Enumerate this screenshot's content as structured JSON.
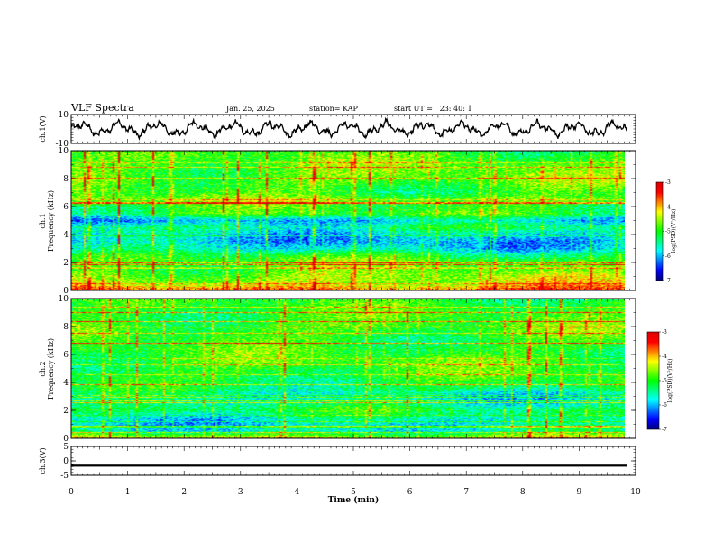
{
  "header": {
    "title": "VLF Spectra",
    "date": "Jan. 25, 2025",
    "station": "station= KAP",
    "start_ut": "start UT =   23: 40: 1"
  },
  "colors": {
    "colormap": [
      "#00007f",
      "#0000ff",
      "#0080ff",
      "#00ffff",
      "#00ff80",
      "#00ff00",
      "#80ff00",
      "#ffff00",
      "#ff8000",
      "#ff0000",
      "#e00000"
    ],
    "trace": "#000000"
  },
  "chart_data": [
    {
      "type": "line",
      "panel": "ch1-waveform",
      "ylabel": "ch.1(V)",
      "ylim": [
        -10,
        10
      ],
      "yticks": [
        {
          "value": 10,
          "label": "10"
        },
        {
          "value": -10,
          "label": "-10"
        }
      ],
      "xlim": [
        0,
        10
      ],
      "description_values": "Waveform oscillating around 0 V with amplitude roughly 3-5 V"
    },
    {
      "type": "heatmap",
      "panel": "ch1-spectrogram",
      "ylabel_line1": "ch.1",
      "ylabel_line2": "Frequency (kHz)",
      "ylim": [
        0,
        10
      ],
      "yticks": [
        {
          "value": 0,
          "label": "0"
        },
        {
          "value": 2,
          "label": "2"
        },
        {
          "value": 4,
          "label": "4"
        },
        {
          "value": 6,
          "label": "6"
        },
        {
          "value": 8,
          "label": "8"
        },
        {
          "value": 10,
          "label": "10"
        }
      ],
      "xlim": [
        0,
        10
      ],
      "zlim": [
        -7,
        -3
      ],
      "colorbar_label": "log(PSD)(V²/Hz)",
      "colorbar_ticks": [
        {
          "value": -3,
          "label": "-3"
        },
        {
          "value": -4,
          "label": "-4"
        },
        {
          "value": -5,
          "label": "-5"
        },
        {
          "value": -6,
          "label": "-6"
        },
        {
          "value": -7,
          "label": "-7"
        }
      ],
      "freq_profile_khz": [
        0,
        0.5,
        1,
        1.5,
        2,
        2.5,
        3,
        3.5,
        4,
        4.5,
        5,
        5.5,
        6,
        6.5,
        7,
        7.5,
        8,
        8.5,
        9,
        9.5,
        10
      ],
      "level_profile": [
        -3.6,
        -4.4,
        -4.6,
        -4.9,
        -4.8,
        -5.2,
        -5.8,
        -6.0,
        -5.8,
        -5.4,
        -6.0,
        -5.0,
        -5.1,
        -4.6,
        -5.0,
        -4.9,
        -4.7,
        -4.8,
        -4.8,
        -4.9,
        -5.0
      ]
    },
    {
      "type": "heatmap",
      "panel": "ch2-spectrogram",
      "ylabel_line1": "ch.2",
      "ylabel_line2": "Frequency (kHz)",
      "ylim": [
        0,
        10
      ],
      "yticks": [
        {
          "value": 0,
          "label": "0"
        },
        {
          "value": 2,
          "label": "2"
        },
        {
          "value": 4,
          "label": "4"
        },
        {
          "value": 6,
          "label": "6"
        },
        {
          "value": 8,
          "label": "8"
        },
        {
          "value": 10,
          "label": "10"
        }
      ],
      "xlim": [
        0,
        10
      ],
      "zlim": [
        -7,
        -3
      ],
      "colorbar_label": "log(PSD)(V²/Hz)",
      "colorbar_ticks": [
        {
          "value": -3,
          "label": "-3"
        },
        {
          "value": -4,
          "label": "-4"
        },
        {
          "value": -5,
          "label": "-5"
        },
        {
          "value": -6,
          "label": "-6"
        },
        {
          "value": -7,
          "label": "-7"
        }
      ],
      "freq_profile_khz": [
        0,
        0.5,
        1,
        1.5,
        2,
        2.5,
        3,
        3.5,
        4,
        4.5,
        5,
        5.5,
        6,
        6.5,
        7,
        7.5,
        8,
        8.5,
        9,
        9.5,
        10
      ],
      "level_profile": [
        -4.2,
        -5.6,
        -5.8,
        -5.6,
        -5.2,
        -5.6,
        -5.7,
        -5.3,
        -5.1,
        -5.0,
        -5.0,
        -4.9,
        -5.0,
        -5.0,
        -5.0,
        -4.9,
        -4.8,
        -5.0,
        -5.0,
        -5.0,
        -5.1
      ]
    },
    {
      "type": "line",
      "panel": "ch3-waveform",
      "ylabel": "ch.3(V)",
      "ylim": [
        -5,
        5
      ],
      "yticks": [
        {
          "value": 5,
          "label": "5"
        },
        {
          "value": 0,
          "label": "0"
        },
        {
          "value": -5,
          "label": "-5"
        }
      ],
      "xlim": [
        0,
        10
      ],
      "trace_level_v": -1.5,
      "trace_band_v": 0.5
    }
  ],
  "x_axis": {
    "xlabel": "Time (min)",
    "xlim": [
      0,
      10
    ],
    "ticks": [
      {
        "value": 0,
        "label": "0"
      },
      {
        "value": 1,
        "label": "1"
      },
      {
        "value": 2,
        "label": "2"
      },
      {
        "value": 3,
        "label": "3"
      },
      {
        "value": 4,
        "label": "4"
      },
      {
        "value": 5,
        "label": "5"
      },
      {
        "value": 6,
        "label": "6"
      },
      {
        "value": 7,
        "label": "7"
      },
      {
        "value": 8,
        "label": "8"
      },
      {
        "value": 9,
        "label": "9"
      },
      {
        "value": 10,
        "label": "10"
      }
    ],
    "data_end_min": 9.85
  }
}
